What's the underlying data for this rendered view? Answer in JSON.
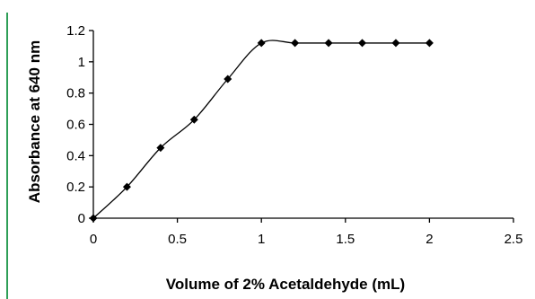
{
  "colors": {
    "accent_rule": "#2e9e57",
    "series": "#000000"
  },
  "chart_data": {
    "type": "line",
    "title": "",
    "xlabel": "Volume of 2% Acetaldehyde (mL)",
    "ylabel": "Absorbance at 640 nm",
    "xlim": [
      0,
      2.5
    ],
    "ylim": [
      0,
      1.2
    ],
    "x_ticks": [
      "0",
      "0.5",
      "1",
      "1.5",
      "2",
      "2.5"
    ],
    "y_ticks": [
      "0",
      "0.2",
      "0.4",
      "0.6",
      "0.8",
      "1",
      "1.2"
    ],
    "grid": false,
    "smoothed": true,
    "marker": "diamond",
    "x": [
      0,
      0.2,
      0.4,
      0.6,
      0.8,
      1.0,
      1.2,
      1.4,
      1.6,
      1.8,
      2.0
    ],
    "y": [
      0,
      0.2,
      0.45,
      0.63,
      0.89,
      1.12,
      1.12,
      1.12,
      1.12,
      1.12,
      1.12
    ]
  }
}
